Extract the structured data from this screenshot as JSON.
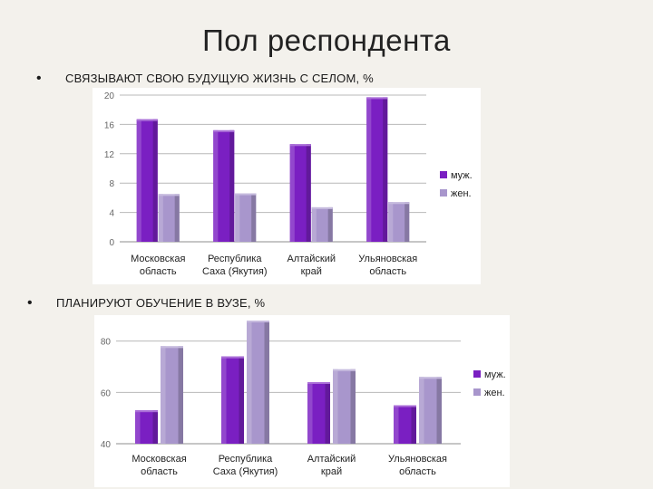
{
  "slide": {
    "title": "Пол респондента",
    "bullet_1": "СВЯЗЫВАЮТ СВОЮ БУДУЩУЮ ЖИЗНЬ С СЕЛОМ, %",
    "bullet_2": "ПЛАНИРУЮТ ОБУЧЕНИЕ В ВУЗЕ, %",
    "bullet_symbol": "•"
  },
  "colors": {
    "male": "#7a1fc2",
    "female": "#a896cc",
    "grid": "#b8b8b8",
    "axis_text": "#666666",
    "label_text": "#222222"
  },
  "chart_data": [
    {
      "type": "bar",
      "categories": [
        [
          "Московская",
          "область"
        ],
        [
          "Республика",
          "Саха (Якутия)"
        ],
        [
          "Алтайский",
          "край"
        ],
        [
          "Ульяновская",
          "область"
        ]
      ],
      "series": [
        {
          "name": "муж.",
          "values": [
            16.7,
            15.2,
            13.3,
            19.7
          ]
        },
        {
          "name": "жен.",
          "values": [
            6.5,
            6.6,
            4.7,
            5.4
          ]
        }
      ],
      "ylim": [
        0,
        20
      ],
      "yticks": [
        0,
        4,
        8,
        12,
        16,
        20
      ],
      "grid": true,
      "legend": "right"
    },
    {
      "type": "bar",
      "categories": [
        [
          "Московская",
          "область"
        ],
        [
          "Республика",
          "Саха (Якутия)"
        ],
        [
          "Алтайский",
          "край"
        ],
        [
          "Ульяновская",
          "область"
        ]
      ],
      "series": [
        {
          "name": "муж.",
          "values": [
            53,
            74,
            64,
            55
          ]
        },
        {
          "name": "жен.",
          "values": [
            78,
            88,
            69,
            66
          ]
        }
      ],
      "ylim": [
        40,
        88
      ],
      "yticks": [
        40,
        60,
        80
      ],
      "grid": true,
      "legend": "right"
    }
  ]
}
